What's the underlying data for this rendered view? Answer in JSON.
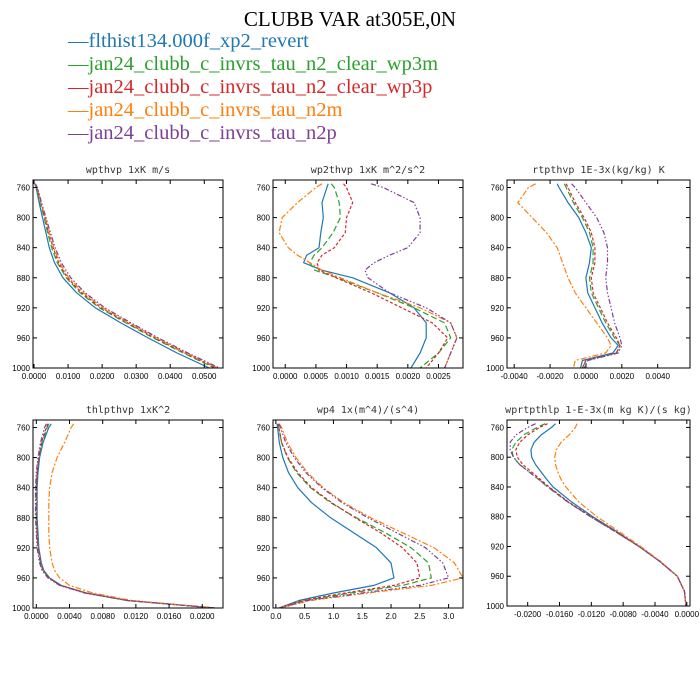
{
  "title": "CLUBB VAR at305E,0N",
  "legend": [
    {
      "label": "flthist134.000f_xp2_revert",
      "color": "#1f77b4"
    },
    {
      "label": "jan24_clubb_c_invrs_tau_n2_clear_wp3m",
      "color": "#2ca02c"
    },
    {
      "label": "jan24_clubb_c_invrs_tau_n2_clear_wp3p",
      "color": "#d62728"
    },
    {
      "label": "jan24_clubb_c_invrs_tau_n2m",
      "color": "#ff7f0e"
    },
    {
      "label": "jan24_clubb_c_invrs_tau_n2p",
      "color": "#7d3f98"
    }
  ],
  "chart_data": [
    {
      "type": "line",
      "title": "wpthvp   1xK m/s",
      "xlim": [
        -0.0003,
        0.0555
      ],
      "ylim": [
        1000,
        750
      ],
      "xticks": [
        0.0,
        0.01,
        0.02,
        0.03,
        0.04,
        0.05
      ],
      "xtick_labels": [
        "0.0000",
        "0.0100",
        "0.0200",
        "0.0300",
        "0.0400",
        "0.0500"
      ],
      "yticks": [
        760,
        800,
        840,
        880,
        920,
        960,
        1000
      ],
      "y": [
        755,
        760,
        780,
        800,
        820,
        840,
        860,
        880,
        900,
        920,
        940,
        960,
        980,
        1000
      ],
      "series": [
        {
          "values": [
            0.0002,
            0.0006,
            0.0015,
            0.0025,
            0.0035,
            0.0045,
            0.006,
            0.0085,
            0.0125,
            0.018,
            0.0255,
            0.0335,
            0.042,
            0.0515
          ]
        },
        {
          "values": [
            0.0003,
            0.0008,
            0.0018,
            0.003,
            0.004,
            0.0052,
            0.0068,
            0.0095,
            0.0135,
            0.0192,
            0.027,
            0.035,
            0.0438,
            0.053
          ]
        },
        {
          "values": [
            0.0003,
            0.0009,
            0.002,
            0.0032,
            0.0043,
            0.0056,
            0.0072,
            0.0098,
            0.014,
            0.0197,
            0.0275,
            0.0355,
            0.0443,
            0.0535
          ]
        },
        {
          "values": [
            0.0003,
            0.0009,
            0.002,
            0.0033,
            0.0045,
            0.0058,
            0.0075,
            0.0102,
            0.0145,
            0.0202,
            0.028,
            0.036,
            0.0448,
            0.054
          ]
        },
        {
          "values": [
            0.0004,
            0.001,
            0.0022,
            0.0035,
            0.0048,
            0.0062,
            0.008,
            0.0108,
            0.015,
            0.0208,
            0.0285,
            0.0365,
            0.0452,
            0.0545
          ]
        }
      ]
    },
    {
      "type": "line",
      "title": "wp2thvp   1xK m^2/s^2",
      "xlim": [
        -0.0002,
        0.0029
      ],
      "ylim": [
        1000,
        750
      ],
      "xticks": [
        0.0,
        0.0005,
        0.001,
        0.0015,
        0.002,
        0.0025
      ],
      "xtick_labels": [
        "0.0000",
        "0.0005",
        "0.0010",
        "0.0015",
        "0.0020",
        "0.0025"
      ],
      "yticks": [
        760,
        800,
        840,
        880,
        920,
        960,
        1000
      ],
      "y": [
        755,
        760,
        780,
        800,
        820,
        840,
        850,
        860,
        870,
        880,
        900,
        920,
        940,
        960,
        980,
        1000
      ],
      "series": [
        {
          "values": [
            0.0007,
            0.00068,
            0.0006,
            0.00062,
            0.00058,
            0.00055,
            0.00035,
            0.0003,
            0.0006,
            0.0011,
            0.0017,
            0.0021,
            0.0023,
            0.0023,
            0.0022,
            0.00205
          ]
        },
        {
          "values": [
            0.00075,
            0.0008,
            0.00088,
            0.0009,
            0.00078,
            0.0006,
            0.00047,
            0.0004,
            0.00048,
            0.00085,
            0.0015,
            0.0021,
            0.0026,
            0.0027,
            0.0025,
            0.0022
          ]
        },
        {
          "values": [
            0.00095,
            0.001,
            0.0011,
            0.001,
            0.00098,
            0.0008,
            0.0006,
            0.00052,
            0.00055,
            0.00083,
            0.0014,
            0.0019,
            0.0024,
            0.00265,
            0.0025,
            0.0023
          ]
        },
        {
          "values": [
            0.0006,
            0.0005,
            0.0002,
            -5e-05,
            -0.0001,
            5e-05,
            0.0002,
            0.0004,
            0.0006,
            0.0009,
            0.0015,
            0.0022,
            0.0027,
            0.0028,
            0.0027,
            0.0026
          ]
        },
        {
          "values": [
            0.0014,
            0.0016,
            0.0021,
            0.0022,
            0.0022,
            0.002,
            0.0017,
            0.00145,
            0.0013,
            0.00135,
            0.0017,
            0.0023,
            0.0027,
            0.0028,
            0.0027,
            0.0026
          ]
        }
      ]
    },
    {
      "type": "line",
      "title": "rtpthvp   1E-3x(kg/kg) K",
      "xlim": [
        -0.0044,
        0.0058
      ],
      "ylim": [
        1000,
        750
      ],
      "xticks": [
        -0.004,
        -0.002,
        0.0,
        0.002,
        0.004
      ],
      "xtick_labels": [
        "-0.0040",
        "-0.0020",
        "0.0000",
        "0.0020",
        "0.0040"
      ],
      "yticks": [
        760,
        800,
        840,
        880,
        920,
        960,
        1000
      ],
      "y": [
        755,
        760,
        780,
        800,
        820,
        840,
        860,
        880,
        900,
        920,
        940,
        960,
        970,
        980,
        990,
        1000
      ],
      "series": [
        {
          "values": [
            -0.0016,
            -0.0015,
            -0.001,
            -0.0004,
            0.0,
            0.0003,
            0.0002,
            0.0,
            0.0001,
            0.0005,
            0.0009,
            0.0014,
            0.0018,
            0.0015,
            -0.0002,
            -0.0003
          ]
        },
        {
          "values": [
            -0.0012,
            -0.0011,
            -0.0007,
            -0.0002,
            0.0002,
            0.0004,
            0.0004,
            0.0002,
            0.0003,
            0.0007,
            0.0011,
            0.0016,
            0.0019,
            0.0017,
            0.0,
            -0.0002
          ]
        },
        {
          "values": [
            -0.0011,
            -0.001,
            -0.0006,
            -0.0001,
            0.0003,
            0.0005,
            0.0005,
            0.0003,
            0.0004,
            0.0008,
            0.0012,
            0.0017,
            0.0019,
            0.0017,
            0.0,
            -0.0002
          ]
        },
        {
          "values": [
            -0.0028,
            -0.0032,
            -0.0038,
            -0.003,
            -0.0022,
            -0.0016,
            -0.0013,
            -0.001,
            -0.0006,
            0.0,
            0.0006,
            0.0012,
            0.0014,
            0.0011,
            -0.0006,
            -0.0007
          ]
        },
        {
          "values": [
            -0.0008,
            -0.0006,
            0.0,
            0.0006,
            0.001,
            0.0012,
            0.0012,
            0.0011,
            0.0012,
            0.0014,
            0.0016,
            0.0019,
            0.002,
            0.0018,
            0.0001,
            -0.0001
          ]
        }
      ]
    },
    {
      "type": "line",
      "title": "thlpthvp   1xK^2",
      "xlim": [
        -0.0004,
        0.0225
      ],
      "ylim": [
        1000,
        750
      ],
      "xticks": [
        0.0,
        0.004,
        0.008,
        0.012,
        0.016,
        0.02
      ],
      "xtick_labels": [
        "0.0000",
        "0.0040",
        "0.0080",
        "0.0120",
        "0.0160",
        "0.0200"
      ],
      "yticks": [
        760,
        800,
        840,
        880,
        920,
        960,
        1000
      ],
      "y": [
        755,
        760,
        780,
        800,
        820,
        840,
        860,
        880,
        900,
        920,
        940,
        950,
        960,
        970,
        980,
        990,
        1000
      ],
      "series": [
        {
          "values": [
            0.0018,
            0.0015,
            0.0008,
            0.0004,
            0.0002,
            0.0001,
            0.0001,
            0.0001,
            0.0002,
            0.0003,
            0.0006,
            0.0009,
            0.0016,
            0.003,
            0.006,
            0.011,
            0.0215
          ]
        },
        {
          "values": [
            0.0015,
            0.0013,
            0.0007,
            0.0003,
            0.0001,
            0.0,
            0.0,
            0.0,
            0.0001,
            0.0002,
            0.0005,
            0.0008,
            0.0015,
            0.0029,
            0.006,
            0.011,
            0.0215
          ]
        },
        {
          "values": [
            0.0014,
            0.0012,
            0.0006,
            0.0003,
            0.0001,
            0.0,
            0.0,
            0.0,
            0.0001,
            0.0002,
            0.0005,
            0.0008,
            0.0015,
            0.0029,
            0.006,
            0.011,
            0.0215
          ]
        },
        {
          "values": [
            0.0045,
            0.0042,
            0.0034,
            0.0025,
            0.0019,
            0.0016,
            0.0015,
            0.0015,
            0.0015,
            0.0016,
            0.0019,
            0.0022,
            0.0028,
            0.004,
            0.0068,
            0.0115,
            0.0215
          ]
        },
        {
          "values": [
            0.0012,
            0.001,
            0.0005,
            0.0002,
            0.0,
            -0.0001,
            -0.0001,
            -0.0001,
            0.0,
            0.0001,
            0.0004,
            0.0007,
            0.0014,
            0.0028,
            0.0058,
            0.011,
            0.0215
          ]
        }
      ]
    },
    {
      "type": "line",
      "title": "wp4   1x(m^4)/(s^4)",
      "xlim": [
        -0.05,
        3.25
      ],
      "ylim": [
        1000,
        750
      ],
      "xticks": [
        0.0,
        0.5,
        1.0,
        1.5,
        2.0,
        2.5,
        3.0
      ],
      "xtick_labels": [
        "0.0",
        "0.5",
        "1.0",
        "1.5",
        "2.0",
        "2.5",
        "3.0"
      ],
      "yticks": [
        760,
        800,
        840,
        880,
        920,
        960,
        1000
      ],
      "y": [
        755,
        760,
        780,
        800,
        820,
        840,
        860,
        880,
        900,
        920,
        940,
        960,
        970,
        980,
        990,
        1000
      ],
      "series": [
        {
          "values": [
            0.02,
            0.03,
            0.06,
            0.12,
            0.22,
            0.38,
            0.62,
            0.95,
            1.35,
            1.75,
            2.0,
            2.05,
            1.7,
            1.0,
            0.4,
            0.05
          ]
        },
        {
          "values": [
            0.03,
            0.05,
            0.1,
            0.2,
            0.36,
            0.6,
            0.95,
            1.4,
            1.9,
            2.35,
            2.65,
            2.7,
            2.2,
            1.3,
            0.5,
            0.06
          ]
        },
        {
          "values": [
            0.03,
            0.05,
            0.1,
            0.21,
            0.38,
            0.62,
            0.97,
            1.38,
            1.82,
            2.2,
            2.45,
            2.5,
            2.05,
            1.2,
            0.45,
            0.06
          ]
        },
        {
          "values": [
            0.06,
            0.1,
            0.2,
            0.35,
            0.55,
            0.82,
            1.18,
            1.65,
            2.2,
            2.75,
            3.1,
            3.25,
            2.7,
            1.6,
            0.6,
            0.07
          ]
        },
        {
          "values": [
            0.05,
            0.08,
            0.17,
            0.32,
            0.52,
            0.8,
            1.15,
            1.6,
            2.1,
            2.6,
            2.9,
            3.0,
            2.5,
            1.5,
            0.55,
            0.07
          ]
        }
      ]
    },
    {
      "type": "line",
      "title": "wprtpthlp   1-E-3x(m kg K)/(s kg)",
      "xlim": [
        -0.0226,
        0.0004
      ],
      "ylim": [
        1000,
        750
      ],
      "xticks": [
        -0.02,
        -0.016,
        -0.012,
        -0.008,
        -0.004,
        0.0
      ],
      "xtick_labels": [
        "-0.0200",
        "-0.0160",
        "-0.0120",
        "-0.0080",
        "-0.0040",
        "0.0000"
      ],
      "yticks": [
        760,
        800,
        840,
        880,
        920,
        960,
        1000
      ],
      "y": [
        755,
        760,
        770,
        780,
        790,
        800,
        810,
        820,
        830,
        840,
        860,
        880,
        900,
        920,
        940,
        960,
        980,
        1000
      ],
      "series": [
        {
          "values": [
            -0.0165,
            -0.017,
            -0.0183,
            -0.0192,
            -0.0196,
            -0.0195,
            -0.019,
            -0.0183,
            -0.0176,
            -0.0168,
            -0.0145,
            -0.0118,
            -0.0088,
            -0.006,
            -0.0034,
            -0.0012,
            -0.0003,
            -0.0001
          ]
        },
        {
          "values": [
            -0.0178,
            -0.0188,
            -0.0205,
            -0.0215,
            -0.022,
            -0.0218,
            -0.021,
            -0.0198,
            -0.0186,
            -0.0175,
            -0.015,
            -0.0121,
            -0.009,
            -0.006,
            -0.0034,
            -0.0012,
            -0.0003,
            -0.0001
          ]
        },
        {
          "values": [
            -0.0175,
            -0.0185,
            -0.02,
            -0.021,
            -0.0215,
            -0.0213,
            -0.0206,
            -0.0195,
            -0.0184,
            -0.0173,
            -0.0149,
            -0.012,
            -0.0089,
            -0.006,
            -0.0034,
            -0.0012,
            -0.0003,
            -0.0001
          ]
        },
        {
          "values": [
            -0.0138,
            -0.014,
            -0.0148,
            -0.0158,
            -0.0164,
            -0.0166,
            -0.0165,
            -0.0162,
            -0.0158,
            -0.0152,
            -0.0136,
            -0.0113,
            -0.0085,
            -0.0058,
            -0.0033,
            -0.0012,
            -0.0003,
            -0.0001
          ]
        },
        {
          "values": [
            -0.019,
            -0.02,
            -0.0215,
            -0.0222,
            -0.0222,
            -0.0218,
            -0.021,
            -0.0198,
            -0.0186,
            -0.0174,
            -0.015,
            -0.0121,
            -0.009,
            -0.006,
            -0.0034,
            -0.0012,
            -0.0003,
            -0.0001
          ]
        }
      ]
    }
  ]
}
